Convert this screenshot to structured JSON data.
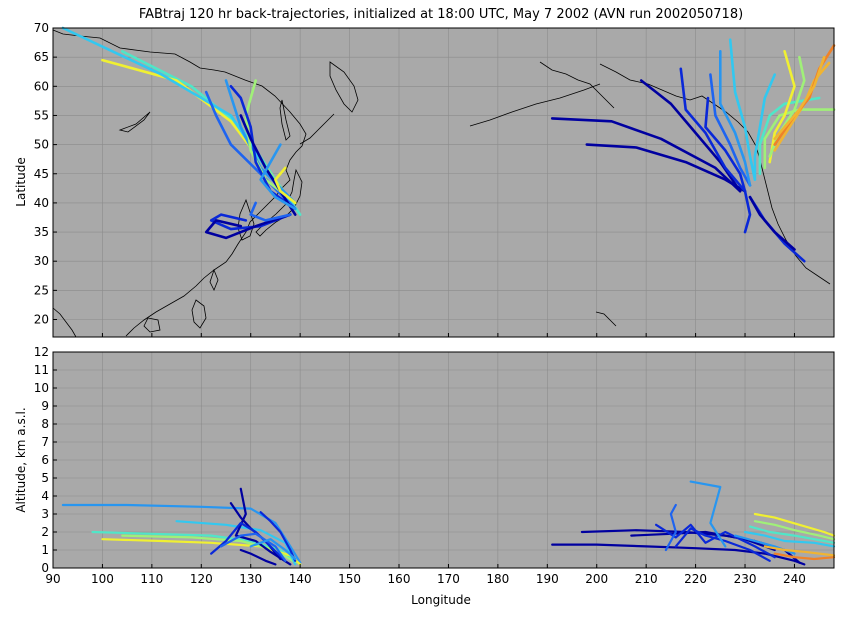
{
  "title": "FABtraj 120 hr back-trajectories, initialized at 18:00 UTC, May 7 2002 (AVN run 2002050718)",
  "colors": {
    "background": "#a9a9a9",
    "colormap": [
      "#0000a0",
      "#0a28d8",
      "#1e64f0",
      "#2896f0",
      "#32c8f0",
      "#50e6c8",
      "#a0f078",
      "#f0f032",
      "#f0b432",
      "#f08228"
    ]
  },
  "chart_data": [
    {
      "type": "line",
      "panel": "map",
      "ylabel": "Latitude",
      "xlabel": "",
      "xlim": [
        90,
        248
      ],
      "ylim": [
        17,
        70
      ],
      "xticks": [
        90,
        100,
        110,
        120,
        130,
        140,
        150,
        160,
        170,
        180,
        190,
        200,
        210,
        220,
        230,
        240
      ],
      "yticks": [
        20,
        25,
        30,
        35,
        40,
        45,
        50,
        55,
        60,
        65,
        70
      ],
      "grid": true,
      "series": [
        {
          "c": 5,
          "x": [
            140,
            135,
            128,
            118,
            104
          ],
          "y": [
            38,
            44,
            53,
            60,
            66
          ]
        },
        {
          "c": 7,
          "x": [
            139,
            134,
            126,
            115,
            100
          ],
          "y": [
            39,
            45,
            54,
            61,
            64.5
          ]
        },
        {
          "c": 4,
          "x": [
            139,
            133,
            126,
            112,
            92
          ],
          "y": [
            39,
            46,
            55,
            62,
            70
          ]
        },
        {
          "c": 3,
          "x": [
            139,
            132,
            128,
            125
          ],
          "y": [
            40,
            46,
            53,
            61
          ]
        },
        {
          "c": 2,
          "x": [
            139,
            132,
            126,
            123,
            121
          ],
          "y": [
            39,
            45,
            50,
            55,
            59
          ]
        },
        {
          "c": 6,
          "x": [
            139,
            133,
            130,
            129,
            131
          ],
          "y": [
            40,
            44,
            49,
            55,
            61
          ]
        },
        {
          "c": 1,
          "x": [
            139,
            134,
            131,
            130,
            128,
            126
          ],
          "y": [
            39,
            42,
            47,
            53,
            58,
            60
          ]
        },
        {
          "c": 0,
          "x": [
            139,
            136,
            133,
            130,
            128
          ],
          "y": [
            38,
            42,
            46,
            51,
            55
          ]
        },
        {
          "c": 1,
          "x": [
            138,
            132,
            126,
            122,
            124,
            129
          ],
          "y": [
            38,
            36,
            35.5,
            37,
            38,
            37
          ]
        },
        {
          "c": 0,
          "x": [
            138,
            131,
            125,
            121,
            123,
            128
          ],
          "y": [
            38,
            36,
            34,
            35,
            37,
            36
          ]
        },
        {
          "c": 2,
          "x": [
            138,
            133,
            130,
            131
          ],
          "y": [
            38,
            37,
            38,
            40
          ]
        },
        {
          "c": 7,
          "x": [
            139,
            136,
            135,
            137
          ],
          "y": [
            40,
            42,
            44,
            46
          ]
        },
        {
          "c": 3,
          "x": [
            139,
            135,
            132,
            134,
            136
          ],
          "y": [
            39,
            41,
            44,
            47,
            50
          ]
        },
        {
          "c": 0,
          "x": [
            230,
            226,
            218,
            208,
            198
          ],
          "y": [
            42,
            44,
            47,
            49.5,
            50
          ]
        },
        {
          "c": 0,
          "x": [
            229,
            224,
            213,
            203,
            191
          ],
          "y": [
            42,
            46,
            51,
            54,
            54.5
          ]
        },
        {
          "c": 0,
          "x": [
            229,
            225,
            219,
            215,
            212,
            209
          ],
          "y": [
            42,
            47,
            53,
            57,
            59,
            61
          ]
        },
        {
          "c": 1,
          "x": [
            230,
            226,
            222,
            218,
            217
          ],
          "y": [
            42,
            46,
            52,
            56,
            63
          ]
        },
        {
          "c": 1,
          "x": [
            230,
            229,
            226,
            222,
            222.5
          ],
          "y": [
            42,
            45,
            49,
            53,
            58
          ]
        },
        {
          "c": 2,
          "x": [
            231,
            229,
            227,
            224,
            223
          ],
          "y": [
            43,
            46,
            50,
            55,
            62
          ]
        },
        {
          "c": 3,
          "x": [
            231,
            230,
            228,
            225,
            225
          ],
          "y": [
            43,
            47,
            52,
            57,
            66
          ]
        },
        {
          "c": 4,
          "x": [
            232,
            231,
            230,
            228,
            227
          ],
          "y": [
            44,
            48,
            53,
            59,
            68
          ]
        },
        {
          "c": 4,
          "x": [
            232,
            232,
            233,
            234,
            236
          ],
          "y": [
            44,
            48,
            53,
            58,
            62
          ]
        },
        {
          "c": 5,
          "x": [
            233,
            233,
            235,
            238,
            245
          ],
          "y": [
            45,
            50,
            55,
            57,
            58
          ]
        },
        {
          "c": 6,
          "x": [
            234,
            234,
            237,
            241,
            248
          ],
          "y": [
            46,
            51,
            55,
            56,
            56
          ]
        },
        {
          "c": 7,
          "x": [
            235,
            236,
            238,
            240,
            238
          ],
          "y": [
            47,
            52,
            55,
            60,
            66
          ]
        },
        {
          "c": 6,
          "x": [
            235,
            237,
            240,
            242,
            241
          ],
          "y": [
            48,
            52,
            56,
            61,
            65
          ]
        },
        {
          "c": 8,
          "x": [
            236,
            239,
            242,
            244,
            247
          ],
          "y": [
            49,
            53,
            57,
            61,
            64
          ]
        },
        {
          "c": 9,
          "x": [
            236,
            240,
            243,
            245,
            248
          ],
          "y": [
            50,
            55,
            58,
            63,
            67
          ]
        },
        {
          "c": 8,
          "x": [
            236,
            241,
            244,
            246
          ],
          "y": [
            51,
            56,
            60,
            65
          ]
        },
        {
          "c": 1,
          "x": [
            231,
            234,
            238,
            242
          ],
          "y": [
            41,
            37,
            33,
            30
          ]
        },
        {
          "c": 0,
          "x": [
            231,
            233,
            236,
            240
          ],
          "y": [
            41,
            38,
            35,
            32
          ]
        },
        {
          "c": 1,
          "x": [
            230,
            231,
            230
          ],
          "y": [
            42,
            38,
            35
          ]
        }
      ]
    },
    {
      "type": "line",
      "panel": "altitude",
      "xlabel": "Longitude",
      "ylabel": "Altitude, km a.s.l.",
      "xlim": [
        90,
        248
      ],
      "ylim": [
        0,
        12
      ],
      "xticks": [
        90,
        100,
        110,
        120,
        130,
        140,
        150,
        160,
        170,
        180,
        190,
        200,
        210,
        220,
        230,
        240
      ],
      "yticks": [
        0,
        1,
        2,
        3,
        4,
        5,
        6,
        7,
        8,
        9,
        10,
        11,
        12
      ],
      "grid": true,
      "series": [
        {
          "c": 3,
          "x": [
            92,
            105,
            120,
            130,
            135,
            138,
            140
          ],
          "y": [
            3.5,
            3.5,
            3.4,
            3.3,
            2.5,
            1.2,
            0.3
          ]
        },
        {
          "c": 5,
          "x": [
            98,
            110,
            122,
            130,
            136,
            140
          ],
          "y": [
            2.0,
            1.9,
            1.8,
            1.5,
            1.0,
            0.2
          ]
        },
        {
          "c": 7,
          "x": [
            100,
            112,
            122,
            132,
            138,
            140
          ],
          "y": [
            1.6,
            1.5,
            1.4,
            1.2,
            0.7,
            0.2
          ]
        },
        {
          "c": 6,
          "x": [
            104,
            118,
            128,
            135,
            139
          ],
          "y": [
            1.8,
            1.7,
            1.5,
            1.0,
            0.3
          ]
        },
        {
          "c": 4,
          "x": [
            115,
            125,
            132,
            137,
            139
          ],
          "y": [
            2.6,
            2.4,
            2.1,
            1.4,
            0.2
          ]
        },
        {
          "c": 0,
          "x": [
            128,
            129,
            127,
            131,
            134,
            138
          ],
          "y": [
            4.4,
            3.0,
            1.8,
            1.5,
            0.9,
            0.2
          ]
        },
        {
          "c": 0,
          "x": [
            126,
            128,
            130,
            133,
            136
          ],
          "y": [
            3.6,
            2.8,
            2.2,
            1.5,
            0.5
          ]
        },
        {
          "c": 1,
          "x": [
            122,
            125,
            128,
            131,
            134,
            137
          ],
          "y": [
            0.8,
            1.5,
            2.5,
            2.0,
            1.2,
            0.4
          ]
        },
        {
          "c": 1,
          "x": [
            132,
            134,
            136,
            138,
            139
          ],
          "y": [
            3.1,
            2.6,
            2.0,
            1.0,
            0.4
          ]
        },
        {
          "c": 2,
          "x": [
            124,
            128,
            131,
            135,
            137
          ],
          "y": [
            1.2,
            1.8,
            1.9,
            1.2,
            0.4
          ]
        },
        {
          "c": 0,
          "x": [
            128,
            130,
            133,
            135
          ],
          "y": [
            1.0,
            0.8,
            0.4,
            0.2
          ]
        },
        {
          "c": 3,
          "x": [
            130,
            134,
            137,
            139
          ],
          "y": [
            1.2,
            1.6,
            1.0,
            0.5
          ]
        },
        {
          "c": 0,
          "x": [
            191,
            200,
            210,
            220,
            228,
            234,
            240,
            242
          ],
          "y": [
            1.3,
            1.3,
            1.2,
            1.1,
            1.0,
            0.8,
            0.4,
            0.2
          ]
        },
        {
          "c": 0,
          "x": [
            197,
            208,
            218,
            226,
            232,
            238,
            241
          ],
          "y": [
            2.0,
            2.1,
            2.0,
            1.8,
            1.5,
            1.0,
            0.3
          ]
        },
        {
          "c": 0,
          "x": [
            207,
            215,
            222,
            230,
            236
          ],
          "y": [
            1.8,
            1.9,
            2.0,
            1.6,
            1.0
          ]
        },
        {
          "c": 1,
          "x": [
            212,
            216,
            219,
            222,
            226,
            232,
            236
          ],
          "y": [
            2.4,
            1.7,
            2.4,
            1.4,
            2.0,
            1.2,
            0.6
          ]
        },
        {
          "c": 1,
          "x": [
            216,
            219,
            222,
            226,
            231,
            235
          ],
          "y": [
            1.2,
            2.2,
            1.8,
            1.5,
            1.0,
            0.4
          ]
        },
        {
          "c": 2,
          "x": [
            214,
            216,
            215,
            216
          ],
          "y": [
            1.0,
            2.0,
            3.0,
            3.5
          ]
        },
        {
          "c": 3,
          "x": [
            219,
            225,
            223,
            226
          ],
          "y": [
            4.8,
            4.5,
            2.5,
            1.2
          ]
        },
        {
          "c": 3,
          "x": [
            228,
            232,
            236,
            240
          ],
          "y": [
            1.8,
            1.5,
            1.2,
            0.8
          ]
        },
        {
          "c": 4,
          "x": [
            230,
            234,
            238,
            244,
            248
          ],
          "y": [
            2.0,
            1.8,
            1.5,
            1.4,
            1.2
          ]
        },
        {
          "c": 5,
          "x": [
            231,
            235,
            240,
            244,
            248
          ],
          "y": [
            2.3,
            2.0,
            1.8,
            1.6,
            1.4
          ]
        },
        {
          "c": 6,
          "x": [
            232,
            236,
            240,
            245,
            248
          ],
          "y": [
            2.6,
            2.4,
            2.1,
            1.8,
            1.6
          ]
        },
        {
          "c": 7,
          "x": [
            232,
            236,
            241,
            246,
            248
          ],
          "y": [
            3.0,
            2.8,
            2.4,
            2.0,
            1.8
          ]
        },
        {
          "c": 8,
          "x": [
            234,
            238,
            242,
            248
          ],
          "y": [
            1.2,
            1.0,
            0.9,
            0.7
          ]
        },
        {
          "c": 9,
          "x": [
            236,
            240,
            244,
            248
          ],
          "y": [
            0.8,
            0.6,
            0.5,
            0.6
          ]
        }
      ]
    }
  ]
}
